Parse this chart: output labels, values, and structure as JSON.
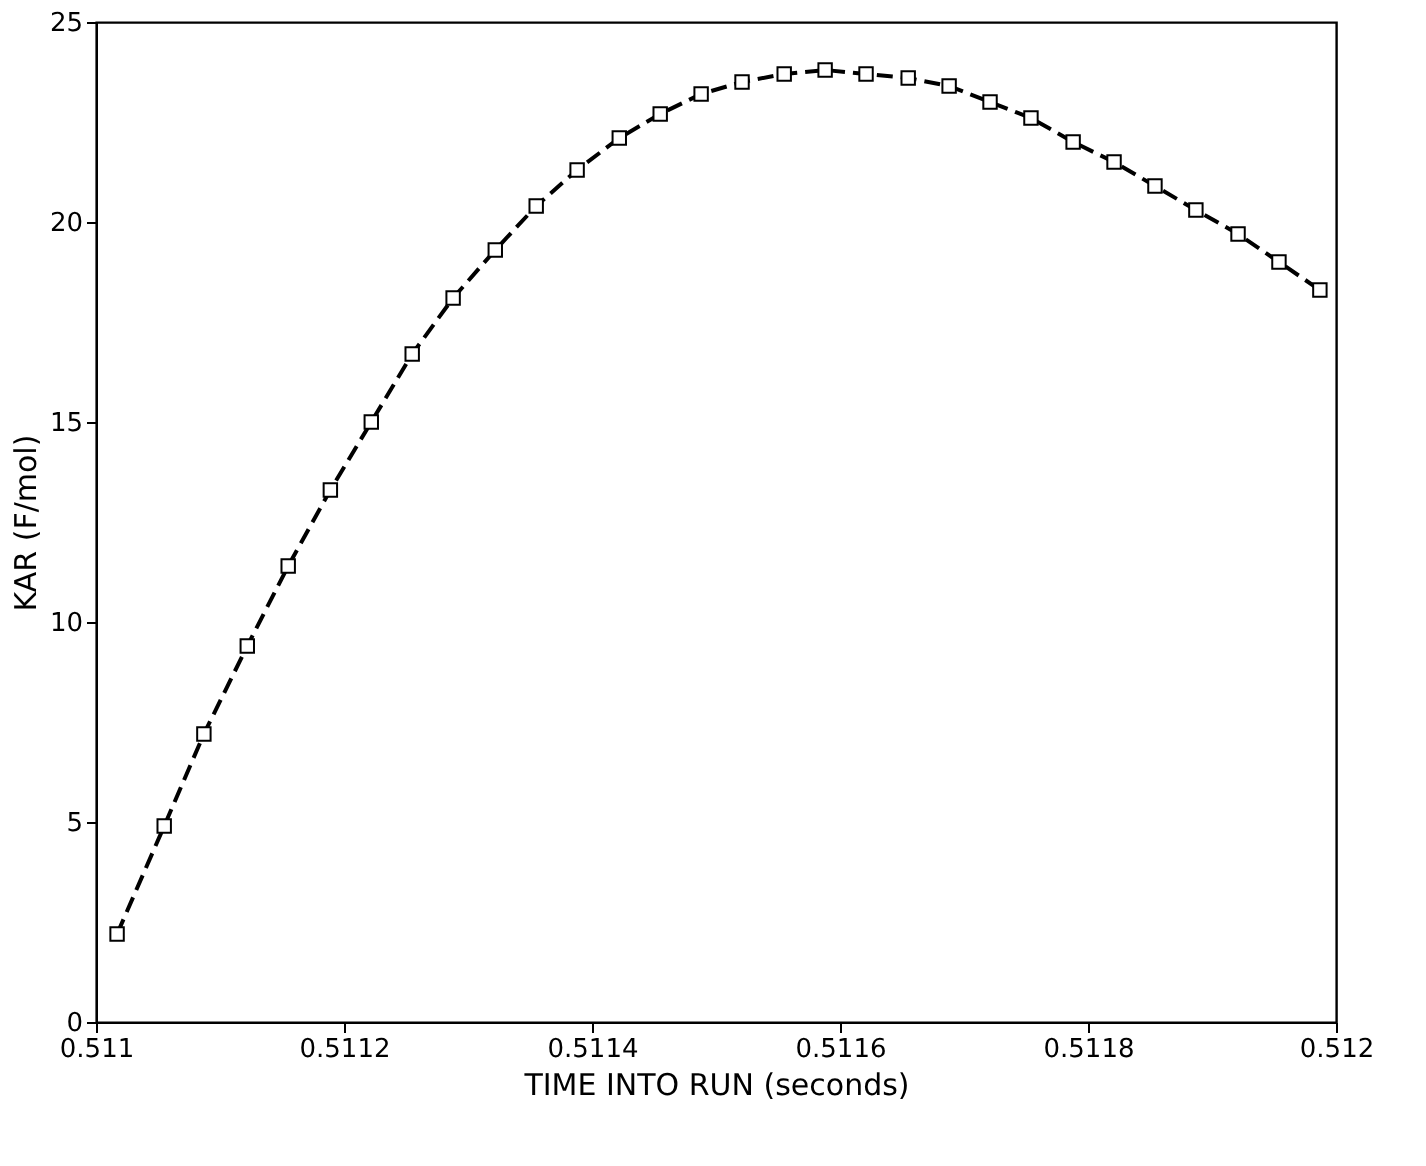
{
  "chart_data": {
    "type": "line",
    "xlabel": "TIME INTO RUN (seconds)",
    "ylabel": "KAR (F/mol)",
    "x": [
      0.511017,
      0.511055,
      0.511087,
      0.511122,
      0.511155,
      0.511189,
      0.511222,
      0.511255,
      0.511288,
      0.511322,
      0.511355,
      0.511388,
      0.511422,
      0.511455,
      0.511488,
      0.511521,
      0.511555,
      0.511588,
      0.511621,
      0.511655,
      0.511688,
      0.511721,
      0.511754,
      0.511788,
      0.511821,
      0.511854,
      0.511887,
      0.511921,
      0.511954,
      0.511987
    ],
    "series": [
      {
        "color": "#000000",
        "values": [
          2.2,
          4.9,
          7.2,
          9.4,
          11.4,
          13.3,
          15.0,
          16.7,
          18.1,
          19.3,
          20.4,
          21.3,
          22.1,
          22.7,
          23.2,
          23.5,
          23.7,
          23.8,
          23.7,
          23.6,
          23.4,
          23.0,
          22.6,
          22.0,
          21.5,
          20.9,
          20.3,
          19.7,
          19.0,
          18.3
        ]
      }
    ],
    "xlim": [
      0.511,
      0.512
    ],
    "xticks": [
      0.511,
      0.5112,
      0.5114,
      0.5116,
      0.5118,
      0.512
    ],
    "ylim": [
      0,
      25
    ],
    "yticks": [
      0,
      5,
      10,
      15,
      20,
      25
    ],
    "grid": false,
    "marker": "square",
    "line_style": "dashed"
  }
}
